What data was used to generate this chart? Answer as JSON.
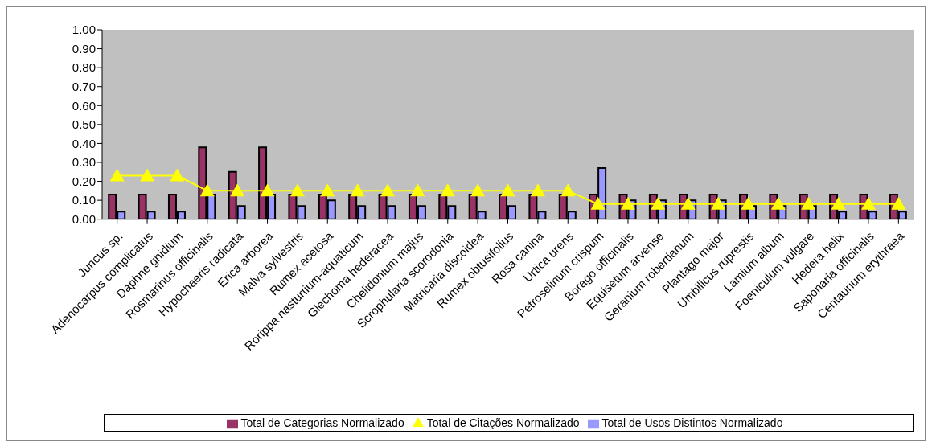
{
  "chart_data": {
    "type": "bar",
    "categories": [
      "Juncus sp.",
      "Adenocarpus complicatus",
      "Daphne gnidium",
      "Rosmarinus officinalis",
      "Hypochaeris radicata",
      "Erica arborea",
      "Malva sylvestris",
      "Rumex acetosa",
      "Rorippa nasturtium-aquaticum",
      "Glechoma hederacea",
      "Chelidonium majus",
      "Scrophularia scorodonia",
      "Matricaria discoidea",
      "Rumex obtusifolius",
      "Rosa canina",
      "Urtica urens",
      "Petroselinum crispum",
      "Borago officinalis",
      "Equisetum arvense",
      "Geranium robertianum",
      "Plantago major",
      "Umbilicus ruprestis",
      "Lamium album",
      "Foeniculum vulgare",
      "Hedera helix",
      "Saponaria officinalis",
      "Centaurium erythraea"
    ],
    "series": [
      {
        "name": "Total de Categorias  Normalizado",
        "color": "#993366",
        "values": [
          0.13,
          0.13,
          0.13,
          0.38,
          0.25,
          0.38,
          0.13,
          0.13,
          0.13,
          0.13,
          0.13,
          0.13,
          0.13,
          0.13,
          0.13,
          0.13,
          0.13,
          0.13,
          0.13,
          0.13,
          0.13,
          0.13,
          0.13,
          0.13,
          0.13,
          0.13,
          0.13
        ]
      },
      {
        "name": "Total de Usos Distintos Normalizado",
        "color": "#9999ff",
        "values": [
          0.04,
          0.04,
          0.04,
          0.13,
          0.07,
          0.13,
          0.07,
          0.1,
          0.07,
          0.07,
          0.07,
          0.07,
          0.04,
          0.07,
          0.04,
          0.04,
          0.27,
          0.1,
          0.1,
          0.1,
          0.1,
          0.07,
          0.07,
          0.07,
          0.04,
          0.04,
          0.04
        ]
      },
      {
        "name": "Total de Citações  Normalizado",
        "type": "line",
        "color": "#ffff00",
        "marker": "triangle",
        "line_style": "solid",
        "values": [
          0.23,
          0.23,
          0.23,
          0.15,
          0.15,
          0.15,
          0.15,
          0.15,
          0.15,
          0.15,
          0.15,
          0.15,
          0.15,
          0.15,
          0.15,
          0.15,
          0.08,
          0.08,
          0.08,
          0.08,
          0.08,
          0.08,
          0.08,
          0.08,
          0.08,
          0.08,
          0.08
        ]
      }
    ],
    "ylim": [
      0,
      1
    ],
    "yticks": [
      {
        "value": 0,
        "label": "0.00"
      },
      {
        "value": 0.1,
        "label": "0.10"
      },
      {
        "value": 0.2,
        "label": "0.20"
      },
      {
        "value": 0.3,
        "label": "0.30"
      },
      {
        "value": 0.4,
        "label": "0.40"
      },
      {
        "value": 0.5,
        "label": "0.50"
      },
      {
        "value": 0.6,
        "label": "0.60"
      },
      {
        "value": 0.7,
        "label": "0.70"
      },
      {
        "value": 0.8,
        "label": "0.80"
      },
      {
        "value": 0.9,
        "label": "0.90"
      },
      {
        "value": 1,
        "label": "1.00"
      }
    ],
    "grid": false,
    "legend": "bottom"
  }
}
